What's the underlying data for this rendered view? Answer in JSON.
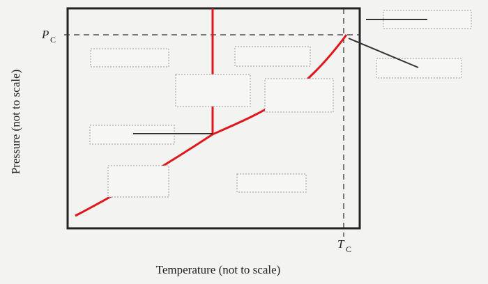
{
  "axes": {
    "y_label": "Pressure (not to scale)",
    "x_label": "Temperature (not to scale)"
  },
  "critical_pressure": {
    "symbol": "P",
    "subscript": "C"
  },
  "critical_temperature": {
    "symbol": "T",
    "subscript": "C"
  }
}
